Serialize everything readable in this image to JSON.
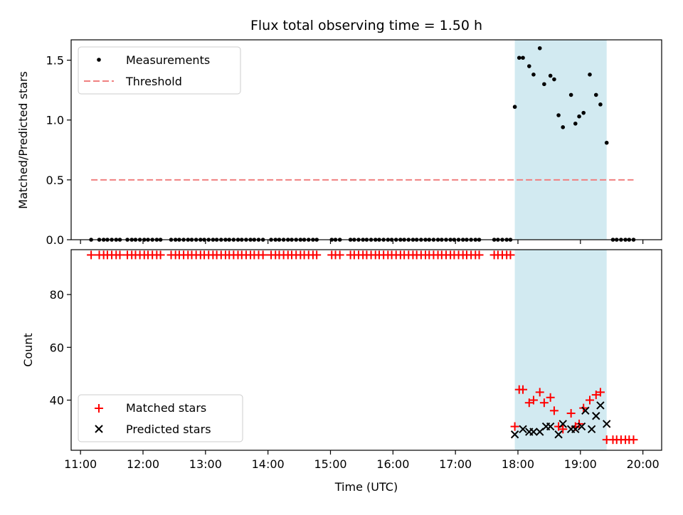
{
  "chart_data": {
    "type": "scatter",
    "title": "Flux total observing time = 1.50 h",
    "xlabel": "Time (UTC)",
    "x_ticks": [
      "11:00",
      "12:00",
      "13:00",
      "14:00",
      "15:00",
      "16:00",
      "17:00",
      "18:00",
      "19:00",
      "20:00"
    ],
    "x_range_hours": [
      10.85,
      20.3
    ],
    "highlight_span_hours": [
      17.95,
      19.42
    ],
    "highlight_color": "#add8e6",
    "panels": [
      {
        "id": "ratio",
        "ylabel": "Matched/Predicted stars",
        "ylim": [
          0,
          1.67
        ],
        "y_ticks": [
          "0.0",
          "0.5",
          "1.0",
          "1.5"
        ],
        "y_tick_values": [
          0,
          0.5,
          1.0,
          1.5
        ],
        "legend_position": "upper-left",
        "series": [
          {
            "name": "Measurements",
            "kind": "dot",
            "color": "#000000",
            "x_hours": [
              11.17,
              11.3,
              11.37,
              11.43,
              11.5,
              11.57,
              11.63,
              11.75,
              11.82,
              11.88,
              11.95,
              12.02,
              12.08,
              12.15,
              12.22,
              12.28,
              12.45,
              12.52,
              12.58,
              12.65,
              12.72,
              12.78,
              12.85,
              12.92,
              12.98,
              13.05,
              13.12,
              13.18,
              13.25,
              13.32,
              13.38,
              13.45,
              13.52,
              13.58,
              13.65,
              13.72,
              13.78,
              13.85,
              13.92,
              14.05,
              14.12,
              14.18,
              14.25,
              14.32,
              14.38,
              14.45,
              14.52,
              14.58,
              14.65,
              14.72,
              14.78,
              15.02,
              15.08,
              15.15,
              15.32,
              15.38,
              15.45,
              15.52,
              15.58,
              15.65,
              15.72,
              15.78,
              15.85,
              15.92,
              15.98,
              16.05,
              16.12,
              16.18,
              16.25,
              16.32,
              16.38,
              16.45,
              16.52,
              16.58,
              16.65,
              16.72,
              16.78,
              16.85,
              16.92,
              16.98,
              17.05,
              17.12,
              17.18,
              17.25,
              17.32,
              17.38,
              17.62,
              17.68,
              17.75,
              17.82,
              17.88,
              17.95,
              18.02,
              18.08,
              18.18,
              18.25,
              18.35,
              18.42,
              18.52,
              18.58,
              18.65,
              18.72,
              18.85,
              18.92,
              18.98,
              19.05,
              19.15,
              19.25,
              19.32,
              19.42,
              19.52,
              19.58,
              19.65,
              19.72,
              19.78,
              19.85
            ],
            "y": [
              0,
              0,
              0,
              0,
              0,
              0,
              0,
              0,
              0,
              0,
              0,
              0,
              0,
              0,
              0,
              0,
              0,
              0,
              0,
              0,
              0,
              0,
              0,
              0,
              0,
              0,
              0,
              0,
              0,
              0,
              0,
              0,
              0,
              0,
              0,
              0,
              0,
              0,
              0,
              0,
              0,
              0,
              0,
              0,
              0,
              0,
              0,
              0,
              0,
              0,
              0,
              0,
              0,
              0,
              0,
              0,
              0,
              0,
              0,
              0,
              0,
              0,
              0,
              0,
              0,
              0,
              0,
              0,
              0,
              0,
              0,
              0,
              0,
              0,
              0,
              0,
              0,
              0,
              0,
              0,
              0,
              0,
              0,
              0,
              0,
              0,
              0,
              0,
              0,
              0,
              0,
              1.11,
              1.52,
              1.52,
              1.45,
              1.38,
              1.6,
              1.3,
              1.37,
              1.34,
              1.04,
              0.94,
              1.21,
              0.97,
              1.03,
              1.06,
              1.38,
              1.21,
              1.13,
              0.81,
              0,
              0,
              0,
              0,
              0,
              0
            ]
          },
          {
            "name": "Threshold",
            "kind": "dashed-line",
            "color": "#f08080",
            "x_hours": [
              11.17,
              19.85
            ],
            "y": [
              0.5,
              0.5
            ]
          }
        ]
      },
      {
        "id": "count",
        "ylabel": "Count",
        "ylim": [
          21,
          97
        ],
        "y_ticks": [
          "40",
          "60",
          "80"
        ],
        "y_tick_values": [
          40,
          60,
          80
        ],
        "legend_position": "lower-left",
        "series": [
          {
            "name": "Matched stars",
            "kind": "plus",
            "color": "#ff0000",
            "x_hours": [
              11.17,
              11.3,
              11.37,
              11.43,
              11.5,
              11.57,
              11.63,
              11.75,
              11.82,
              11.88,
              11.95,
              12.02,
              12.08,
              12.15,
              12.22,
              12.28,
              12.45,
              12.52,
              12.58,
              12.65,
              12.72,
              12.78,
              12.85,
              12.92,
              12.98,
              13.05,
              13.12,
              13.18,
              13.25,
              13.32,
              13.38,
              13.45,
              13.52,
              13.58,
              13.65,
              13.72,
              13.78,
              13.85,
              13.92,
              14.05,
              14.12,
              14.18,
              14.25,
              14.32,
              14.38,
              14.45,
              14.52,
              14.58,
              14.65,
              14.72,
              14.78,
              15.02,
              15.08,
              15.15,
              15.32,
              15.38,
              15.45,
              15.52,
              15.58,
              15.65,
              15.72,
              15.78,
              15.85,
              15.92,
              15.98,
              16.05,
              16.12,
              16.18,
              16.25,
              16.32,
              16.38,
              16.45,
              16.52,
              16.58,
              16.65,
              16.72,
              16.78,
              16.85,
              16.92,
              16.98,
              17.05,
              17.12,
              17.18,
              17.25,
              17.32,
              17.38,
              17.62,
              17.68,
              17.75,
              17.82,
              17.88,
              17.95,
              18.02,
              18.08,
              18.18,
              18.25,
              18.35,
              18.42,
              18.52,
              18.58,
              18.65,
              18.72,
              18.85,
              18.92,
              18.98,
              19.05,
              19.15,
              19.25,
              19.32,
              19.42,
              19.52,
              19.58,
              19.65,
              19.72,
              19.78,
              19.85
            ],
            "y": [
              95,
              95,
              95,
              95,
              95,
              95,
              95,
              95,
              95,
              95,
              95,
              95,
              95,
              95,
              95,
              95,
              95,
              95,
              95,
              95,
              95,
              95,
              95,
              95,
              95,
              95,
              95,
              95,
              95,
              95,
              95,
              95,
              95,
              95,
              95,
              95,
              95,
              95,
              95,
              95,
              95,
              95,
              95,
              95,
              95,
              95,
              95,
              95,
              95,
              95,
              95,
              95,
              95,
              95,
              95,
              95,
              95,
              95,
              95,
              95,
              95,
              95,
              95,
              95,
              95,
              95,
              95,
              95,
              95,
              95,
              95,
              95,
              95,
              95,
              95,
              95,
              95,
              95,
              95,
              95,
              95,
              95,
              95,
              95,
              95,
              95,
              95,
              95,
              95,
              95,
              95,
              30,
              44,
              44,
              39,
              40,
              43,
              39,
              41,
              36,
              30,
              29,
              35,
              30,
              31,
              37,
              40,
              42,
              43,
              25,
              25,
              25,
              25,
              25,
              25,
              25
            ]
          },
          {
            "name": "Predicted stars",
            "kind": "x",
            "color": "#000000",
            "x_hours": [
              17.95,
              18.08,
              18.18,
              18.25,
              18.35,
              18.45,
              18.52,
              18.65,
              18.72,
              18.85,
              18.92,
              19.02,
              19.08,
              19.18,
              19.25,
              19.32,
              19.42
            ],
            "y": [
              27,
              29,
              28,
              28,
              28,
              30,
              30,
              27,
              31,
              29,
              29,
              30,
              36,
              29,
              34,
              38,
              31
            ]
          }
        ]
      }
    ]
  }
}
